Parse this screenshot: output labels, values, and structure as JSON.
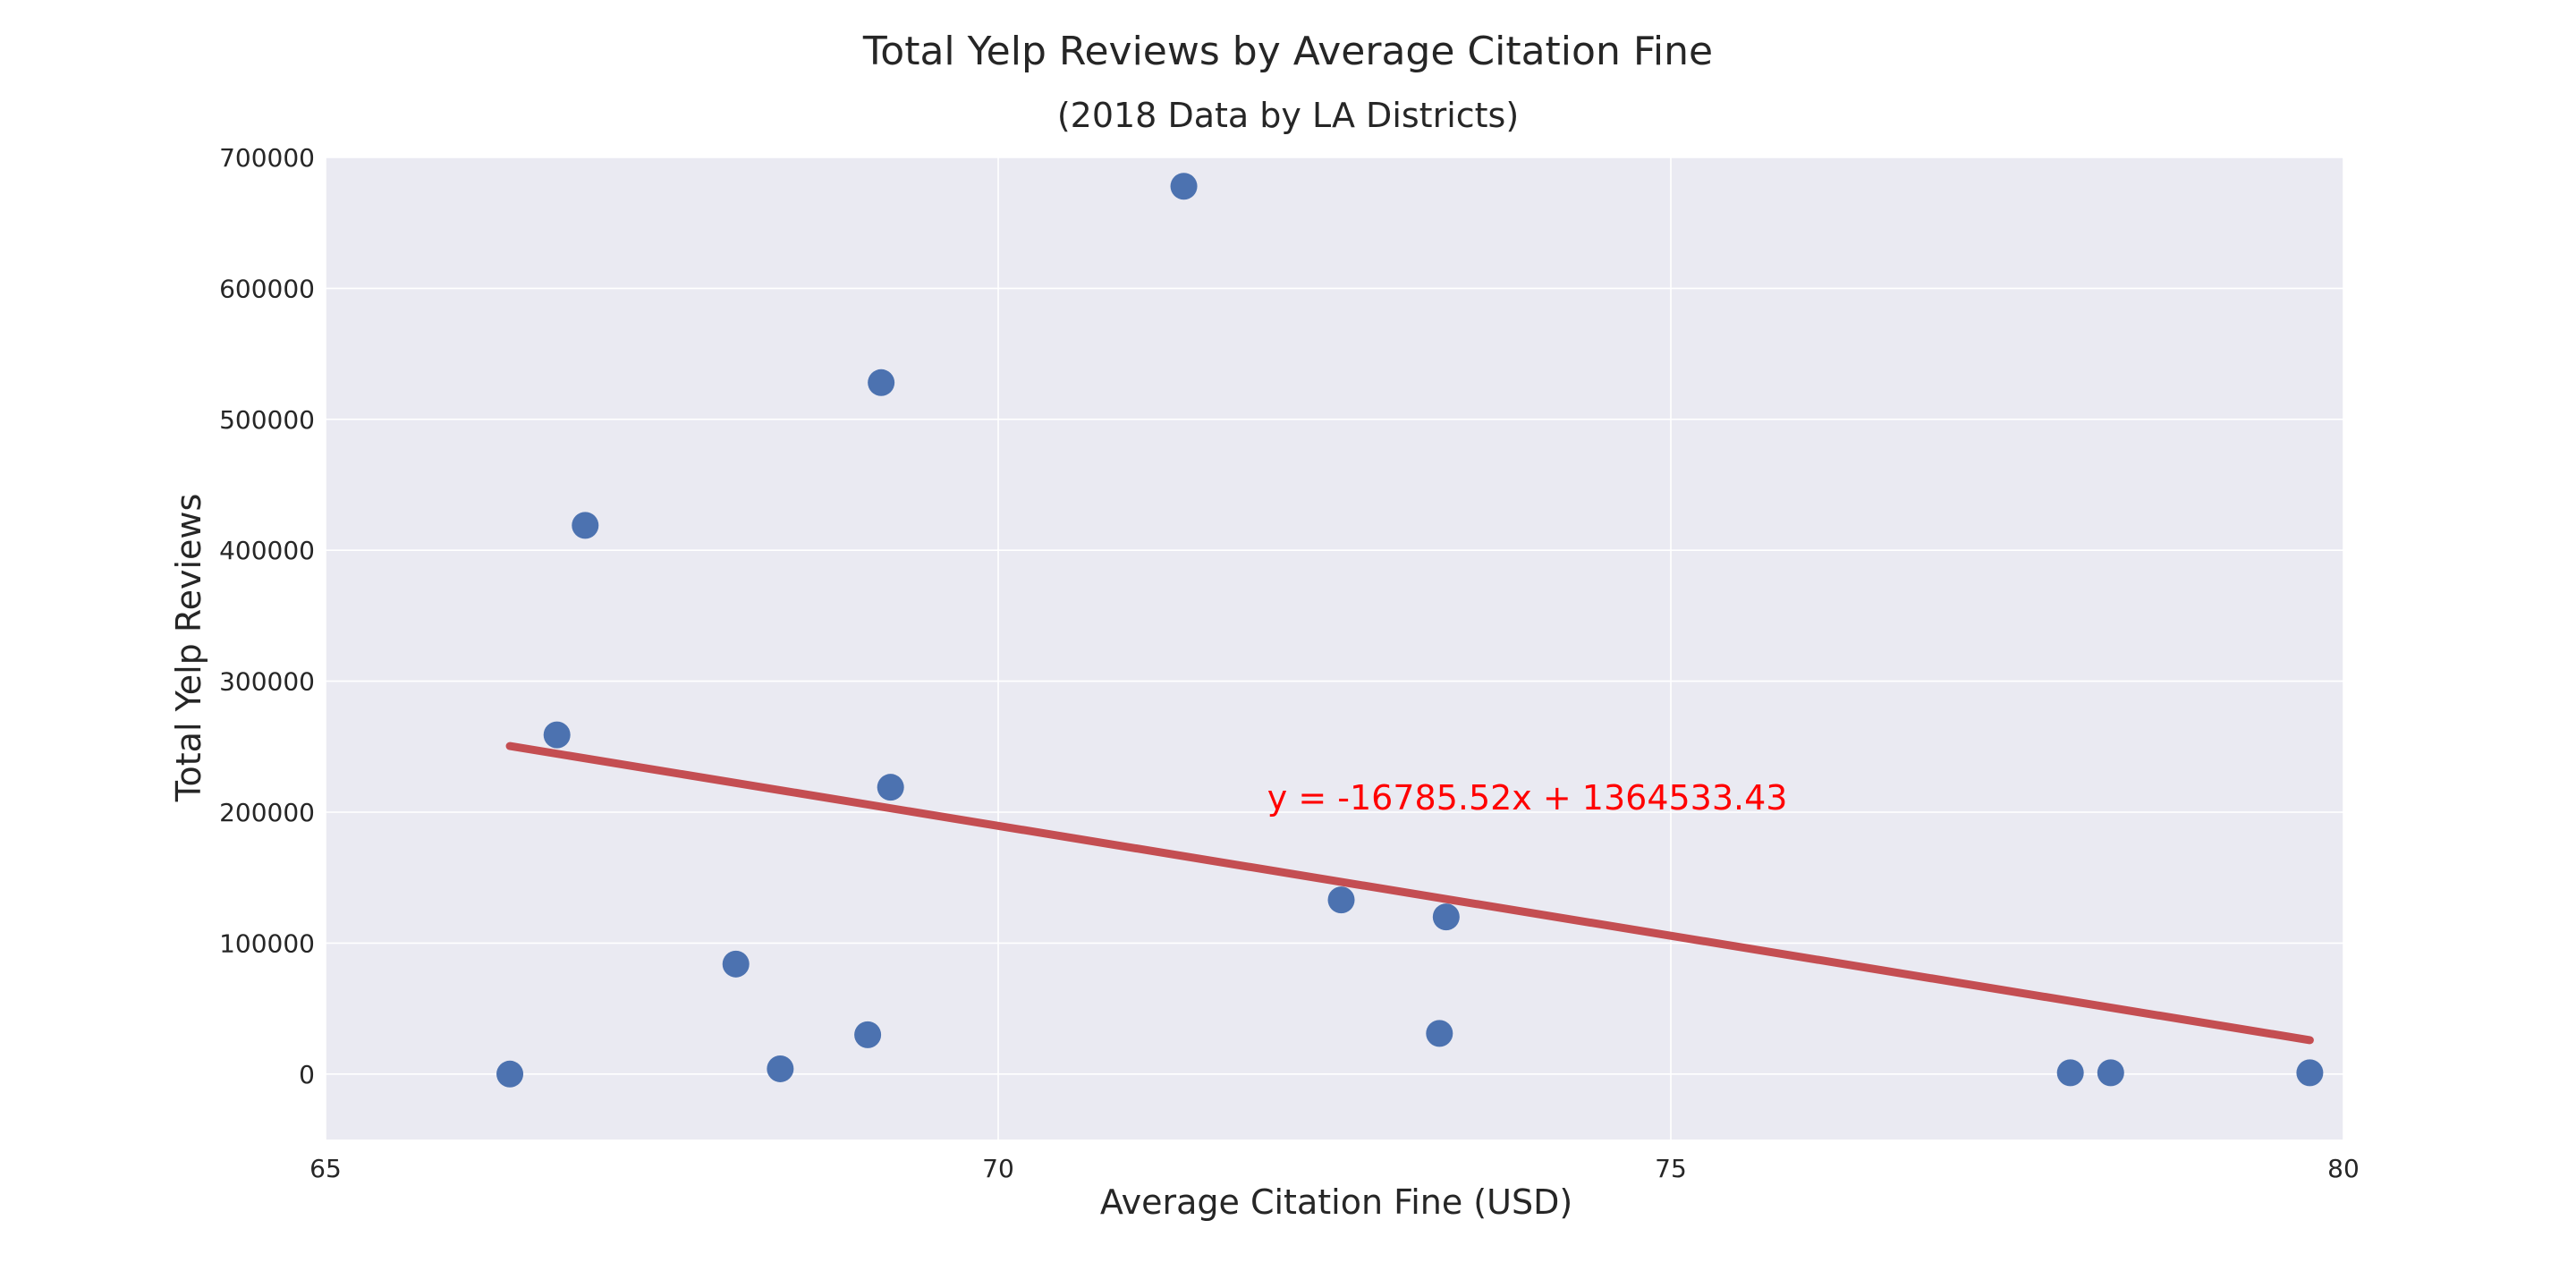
{
  "chart_data": {
    "type": "scatter",
    "title": "Total Yelp Reviews by Average Citation Fine",
    "subtitle": "(2018 Data by LA Districts)",
    "xlabel": "Average Citation Fine (USD)",
    "ylabel": "Total Yelp Reviews",
    "xlim": [
      65,
      80
    ],
    "ylim": [
      -50000,
      700000
    ],
    "x_ticks": [
      65,
      70,
      75,
      80
    ],
    "x_tick_labels": [
      "65",
      "70",
      "75",
      "80"
    ],
    "y_ticks": [
      0,
      100000,
      200000,
      300000,
      400000,
      500000,
      600000,
      700000
    ],
    "y_tick_labels": [
      "0",
      "100000",
      "200000",
      "300000",
      "400000",
      "500000",
      "600000",
      "700000"
    ],
    "grid": true,
    "points": [
      {
        "x": 66.37,
        "y": 0
      },
      {
        "x": 66.72,
        "y": 259000
      },
      {
        "x": 66.93,
        "y": 419000
      },
      {
        "x": 68.05,
        "y": 84000
      },
      {
        "x": 68.38,
        "y": 4000
      },
      {
        "x": 69.03,
        "y": 30000
      },
      {
        "x": 69.13,
        "y": 528000
      },
      {
        "x": 69.2,
        "y": 219000
      },
      {
        "x": 71.38,
        "y": 678000
      },
      {
        "x": 72.55,
        "y": 133000
      },
      {
        "x": 73.28,
        "y": 31000
      },
      {
        "x": 73.33,
        "y": 120000
      },
      {
        "x": 77.97,
        "y": 1000
      },
      {
        "x": 78.27,
        "y": 1000
      },
      {
        "x": 79.75,
        "y": 1000
      }
    ],
    "regression": {
      "slope": -16785.52,
      "intercept": 1364533.43,
      "x_start": 66.37,
      "x_end": 79.75
    },
    "equation_label": "y = -16785.52x + 1364533.43",
    "colors": {
      "plot_background": "#eaeaf2",
      "grid": "#ffffff",
      "points": "#4c72b0",
      "regression_line": "#c44e52",
      "equation": "#ff0000"
    }
  }
}
